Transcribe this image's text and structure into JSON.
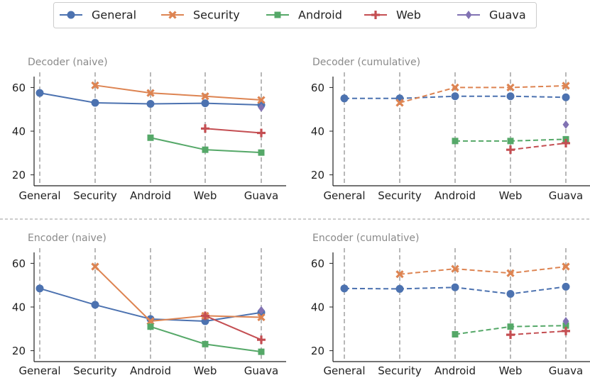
{
  "legend": {
    "entries": [
      {
        "name": "General",
        "color": "#4c72b0",
        "marker": "circle"
      },
      {
        "name": "Security",
        "color": "#dd8452",
        "marker": "x"
      },
      {
        "name": "Android",
        "color": "#55a868",
        "marker": "square"
      },
      {
        "name": "Web",
        "color": "#c44e52",
        "marker": "plus"
      },
      {
        "name": "Guava",
        "color": "#8172b3",
        "marker": "diamond"
      }
    ]
  },
  "chart_data": [
    {
      "type": "line",
      "title": "Decoder (naive)",
      "categories": [
        "General",
        "Security",
        "Android",
        "Web",
        "Guava"
      ],
      "ylim": [
        15,
        65
      ],
      "yticks": [
        20,
        40,
        60
      ],
      "linestyle": "solid",
      "series": [
        {
          "name": "General",
          "values": [
            57.5,
            53,
            52.5,
            52.8,
            52
          ]
        },
        {
          "name": "Security",
          "values": [
            null,
            61,
            57.5,
            56,
            54.3
          ]
        },
        {
          "name": "Android",
          "values": [
            null,
            null,
            37,
            31.5,
            30.2
          ]
        },
        {
          "name": "Web",
          "values": [
            null,
            null,
            null,
            41.2,
            39.2
          ]
        },
        {
          "name": "Guava",
          "values": [
            null,
            null,
            null,
            null,
            50.8
          ]
        }
      ]
    },
    {
      "type": "line",
      "title": "Decoder (cumulative)",
      "categories": [
        "General",
        "Security",
        "Android",
        "Web",
        "Guava"
      ],
      "ylim": [
        15,
        65
      ],
      "yticks": [
        20,
        40,
        60
      ],
      "linestyle": "dashed",
      "series": [
        {
          "name": "General",
          "values": [
            55,
            55,
            56,
            56,
            55.5
          ]
        },
        {
          "name": "Security",
          "values": [
            null,
            53,
            60,
            60,
            60.8
          ]
        },
        {
          "name": "Android",
          "values": [
            null,
            null,
            35.5,
            35.5,
            36.3
          ]
        },
        {
          "name": "Web",
          "values": [
            null,
            null,
            null,
            31.5,
            34.5
          ]
        },
        {
          "name": "Guava",
          "values": [
            null,
            null,
            null,
            null,
            43
          ]
        }
      ]
    },
    {
      "type": "line",
      "title": "Encoder (naive)",
      "categories": [
        "General",
        "Security",
        "Android",
        "Web",
        "Guava"
      ],
      "ylim": [
        15,
        65
      ],
      "yticks": [
        20,
        40,
        60
      ],
      "linestyle": "solid",
      "series": [
        {
          "name": "General",
          "values": [
            48.5,
            41,
            34.5,
            33.5,
            37.5
          ]
        },
        {
          "name": "Security",
          "values": [
            null,
            58.5,
            33.5,
            36,
            35.3
          ]
        },
        {
          "name": "Android",
          "values": [
            null,
            null,
            31,
            23,
            19.5
          ]
        },
        {
          "name": "Web",
          "values": [
            null,
            null,
            null,
            36,
            25
          ]
        },
        {
          "name": "Guava",
          "values": [
            null,
            null,
            null,
            null,
            38.5
          ]
        }
      ]
    },
    {
      "type": "line",
      "title": "Encoder (cumulative)",
      "categories": [
        "General",
        "Security",
        "Android",
        "Web",
        "Guava"
      ],
      "ylim": [
        15,
        65
      ],
      "yticks": [
        20,
        40,
        60
      ],
      "linestyle": "dashed",
      "series": [
        {
          "name": "General",
          "values": [
            48.5,
            48.3,
            49,
            46,
            49.3
          ]
        },
        {
          "name": "Security",
          "values": [
            null,
            55,
            57.5,
            55.5,
            58.5
          ]
        },
        {
          "name": "Android",
          "values": [
            null,
            null,
            27.5,
            31,
            31.5
          ]
        },
        {
          "name": "Web",
          "values": [
            null,
            null,
            null,
            27.3,
            29
          ]
        },
        {
          "name": "Guava",
          "values": [
            null,
            null,
            null,
            null,
            33.5
          ]
        }
      ]
    }
  ]
}
